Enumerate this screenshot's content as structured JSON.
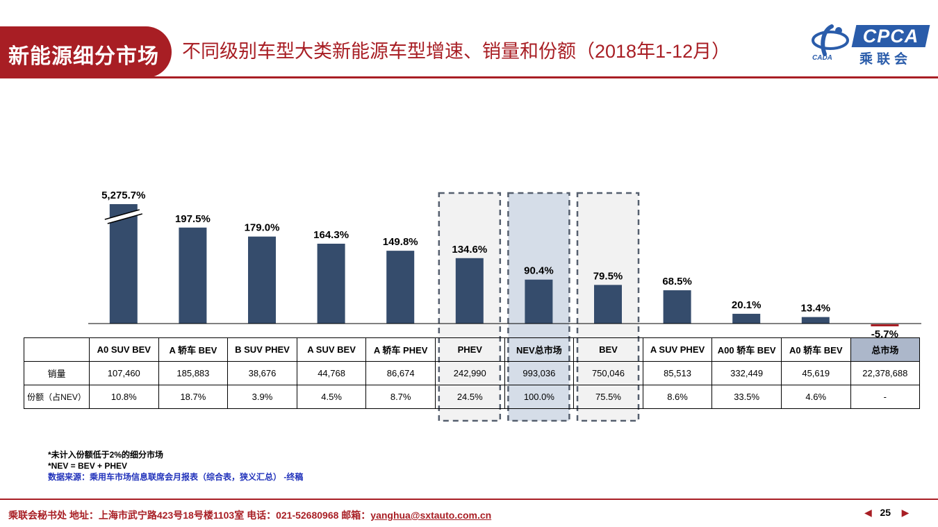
{
  "header": {
    "section": "新能源细分市场",
    "title": "不同级别车型大类新能源车型增速、销量和份额（2018年1-12月）"
  },
  "logo": {
    "brand": "CPCA",
    "brand_cn": "乘联会",
    "cada": "CADA"
  },
  "colors": {
    "bar": "#354c6c",
    "negative": "#a81e24",
    "accent": "#a81e24",
    "highlight": "#d5dde8",
    "box_fill": "#f2f2f2",
    "total_header": "#acb7ca"
  },
  "chart_data": {
    "type": "bar",
    "categories": [
      "A0 SUV BEV",
      "A 轿车 BEV",
      "B SUV PHEV",
      "A SUV BEV",
      "A 轿车 PHEV",
      "PHEV",
      "NEV总市场",
      "BEV",
      "A SUV PHEV",
      "A00 轿车 BEV",
      "A0 轿车 BEV",
      "总市场"
    ],
    "values": [
      5275.7,
      197.5,
      179.0,
      164.3,
      149.8,
      134.6,
      90.4,
      79.5,
      68.5,
      20.1,
      13.4,
      -5.7
    ],
    "value_labels": [
      "5,275.7%",
      "197.5%",
      "179.0%",
      "164.3%",
      "149.8%",
      "134.6%",
      "90.4%",
      "79.5%",
      "68.5%",
      "20.1%",
      "13.4%",
      "-5.7%"
    ],
    "unit": "%",
    "axis_break_category": "A0 SUV BEV",
    "highlighted_categories": [
      "PHEV",
      "NEV总市场",
      "BEV"
    ],
    "grid": false
  },
  "table": {
    "header_blank": "",
    "rows": [
      {
        "label": "销量",
        "cells": [
          "107,460",
          "185,883",
          "38,676",
          "44,768",
          "86,674",
          "242,990",
          "993,036",
          "750,046",
          "85,513",
          "332,449",
          "45,619",
          "22,378,688"
        ]
      },
      {
        "label": "份额（占NEV）",
        "cells": [
          "10.8%",
          "18.7%",
          "3.9%",
          "4.5%",
          "8.7%",
          "24.5%",
          "100.0%",
          "75.5%",
          "8.6%",
          "33.5%",
          "4.6%",
          "-"
        ]
      }
    ]
  },
  "notes": {
    "line1": "*未计入份额低于2%的细分市场",
    "line2": "*NEV = BEV + PHEV",
    "source": "数据来源：乘用车市场信息联席会月报表（综合表，狭义汇总） -终稿"
  },
  "footer": {
    "text": "乘联会秘书处   地址：上海市武宁路423号18号楼1103室  电话：021-52680968   邮箱：",
    "email": "yanghua@sxtauto.com.cn"
  },
  "pager": {
    "prev": "◀",
    "page": "25",
    "next": "▶"
  }
}
